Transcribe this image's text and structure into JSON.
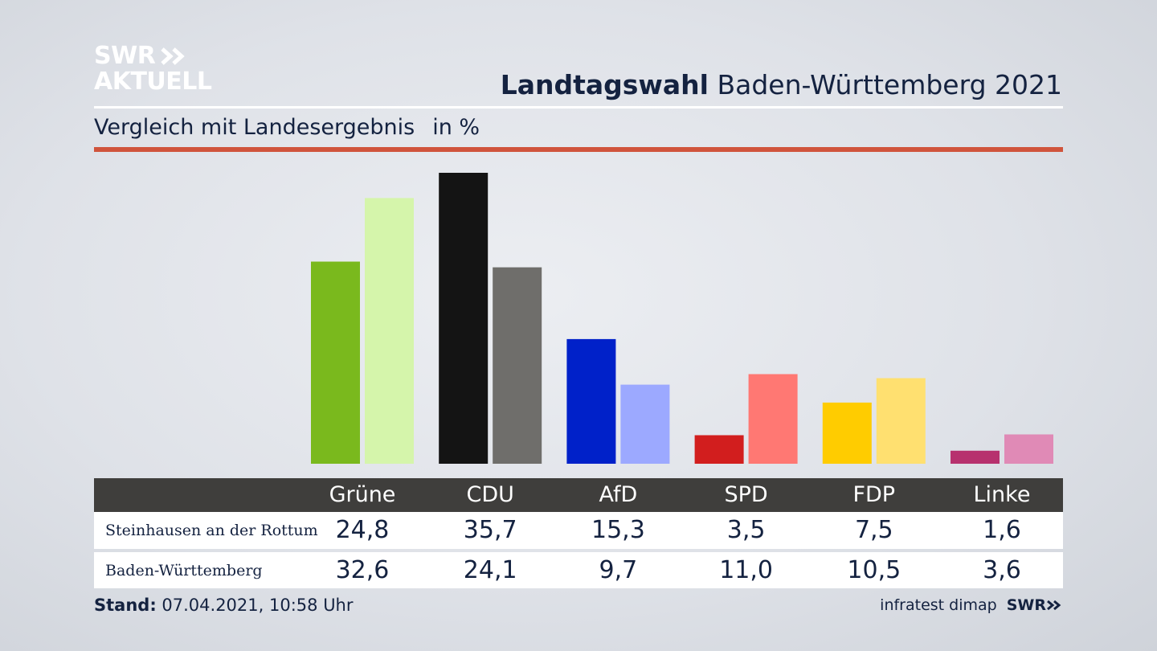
{
  "brand": {
    "line1": "SWR",
    "line2": "AKTUELL"
  },
  "header": {
    "title_bold": "Landtagswahl",
    "title_rest": "Baden-Württemberg 2021"
  },
  "subtitle": {
    "text": "Vergleich mit Landesergebnis",
    "unit": "in %"
  },
  "colors": {
    "accent_rule": "#d0543c",
    "series_dark": [
      "#7ab91d",
      "#141414",
      "#0021c9",
      "#d21e1e",
      "#ffcc00",
      "#b7316e"
    ],
    "series_light": [
      "#d5f5ab",
      "#6f6e6b",
      "#9ca9ff",
      "#ff7873",
      "#ffe070",
      "#e08ab6"
    ]
  },
  "chart_data": {
    "type": "bar",
    "title": "Landtagswahl Baden-Württemberg 2021",
    "subtitle": "Vergleich mit Landesergebnis",
    "ylabel": "in %",
    "categories": [
      "Grüne",
      "CDU",
      "AfD",
      "SPD",
      "FDP",
      "Linke"
    ],
    "series": [
      {
        "name": "Steinhausen an der Rottum",
        "values": [
          24.8,
          35.7,
          15.3,
          3.5,
          7.5,
          1.6
        ],
        "display": [
          "24,8",
          "35,7",
          "15,3",
          "3,5",
          "7,5",
          "1,6"
        ]
      },
      {
        "name": "Baden-Württemberg",
        "values": [
          32.6,
          24.1,
          9.7,
          11.0,
          10.5,
          3.6
        ],
        "display": [
          "32,6",
          "24,1",
          "9,7",
          "11,0",
          "10,5",
          "3,6"
        ]
      }
    ],
    "ylim": [
      0,
      38
    ]
  },
  "footer": {
    "stand_label": "Stand:",
    "stand_value": "07.04.2021, 10:58 Uhr",
    "source": "infratest dimap",
    "source_logo": "SWR"
  }
}
